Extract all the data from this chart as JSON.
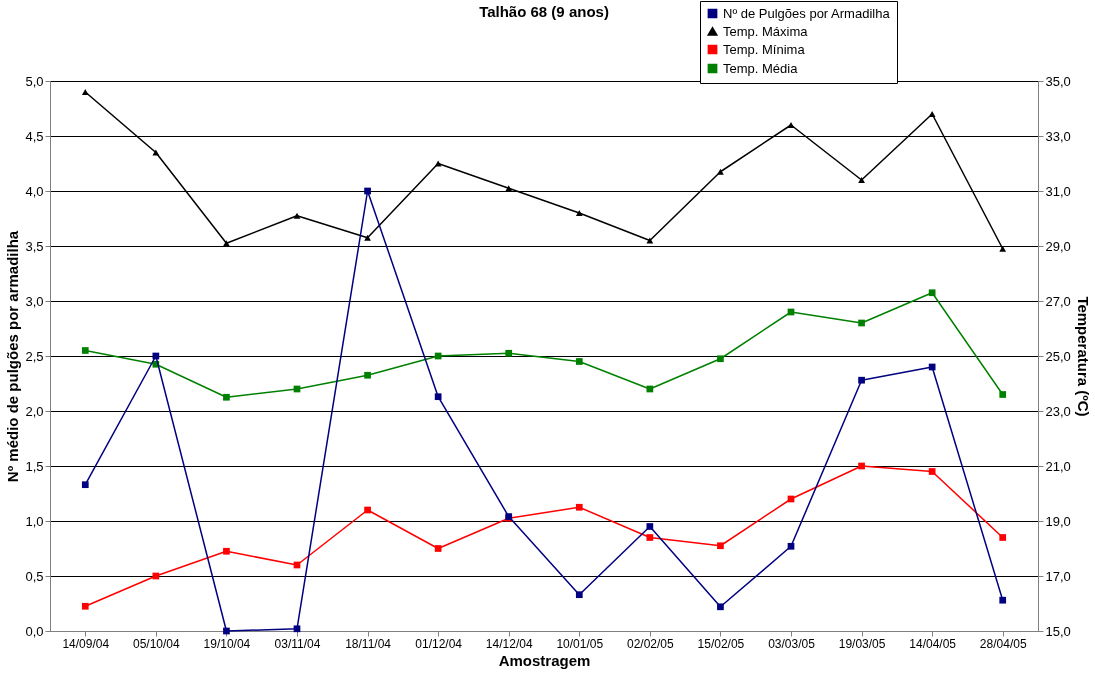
{
  "chart_data": {
    "type": "line",
    "title": "Talhão 68 (9 anos)",
    "xlabel": "Amostragem",
    "ylabel": "Nº médio de pulgões por armadilha",
    "y2label": "Temperatura (ºC)",
    "categories": [
      "14/09/04",
      "05/10/04",
      "19/10/04",
      "03/11/04",
      "18/11/04",
      "01/12/04",
      "14/12/04",
      "10/01/05",
      "02/02/05",
      "15/02/05",
      "03/03/05",
      "19/03/05",
      "14/04/05",
      "28/04/05"
    ],
    "series": [
      {
        "name": "Nº de Pulgões por Armadilha",
        "color": "#000080",
        "marker": "square",
        "values": [
          1.33,
          2.5,
          0.0,
          0.02,
          4.0,
          2.13,
          1.04,
          0.33,
          0.95,
          0.22,
          0.77,
          2.28,
          2.4,
          0.28
        ]
      },
      {
        "name": "Temp. Máxima",
        "color": "#000000",
        "marker": "triangle",
        "axis": "y2",
        "values": [
          34.6,
          32.4,
          29.1,
          30.1,
          29.3,
          32.0,
          31.1,
          30.2,
          29.2,
          31.7,
          33.4,
          31.4,
          33.8,
          28.9
        ]
      },
      {
        "name": "Temp. Mínima",
        "color": "#ff0000",
        "marker": "square",
        "axis": "y2",
        "values": [
          15.9,
          17.0,
          17.9,
          17.4,
          19.4,
          18.0,
          19.1,
          19.5,
          18.4,
          18.1,
          19.8,
          21.0,
          20.8,
          18.4
        ]
      },
      {
        "name": "Temp. Média",
        "color": "#008000",
        "marker": "square",
        "axis": "y2",
        "values": [
          25.2,
          24.7,
          23.5,
          23.8,
          24.3,
          25.0,
          25.1,
          24.8,
          23.8,
          24.9,
          26.6,
          26.2,
          27.3,
          23.6
        ]
      }
    ],
    "ylim": [
      0,
      5
    ],
    "yticks": [
      {
        "value": 0,
        "label": "0,0"
      },
      {
        "value": 0.5,
        "label": "0,5"
      },
      {
        "value": 1,
        "label": "1,0"
      },
      {
        "value": 1.5,
        "label": "1,5"
      },
      {
        "value": 2,
        "label": "2,0"
      },
      {
        "value": 2.5,
        "label": "2,5"
      },
      {
        "value": 3,
        "label": "3,0"
      },
      {
        "value": 3.5,
        "label": "3,5"
      },
      {
        "value": 4,
        "label": "4,0"
      },
      {
        "value": 4.5,
        "label": "4,5"
      },
      {
        "value": 5,
        "label": "5,0"
      }
    ],
    "y2lim": [
      15,
      35
    ],
    "y2ticks": [
      {
        "value": 15,
        "label": "15,0"
      },
      {
        "value": 17,
        "label": "17,0"
      },
      {
        "value": 19,
        "label": "19,0"
      },
      {
        "value": 21,
        "label": "21,0"
      },
      {
        "value": 23,
        "label": "23,0"
      },
      {
        "value": 25,
        "label": "25,0"
      },
      {
        "value": 27,
        "label": "27,0"
      },
      {
        "value": 29,
        "label": "29,0"
      },
      {
        "value": 31,
        "label": "31,0"
      },
      {
        "value": 33,
        "label": "33,0"
      },
      {
        "value": 35,
        "label": "35,0"
      }
    ],
    "grid": "y",
    "legend": "top right",
    "line_style": "solid"
  }
}
